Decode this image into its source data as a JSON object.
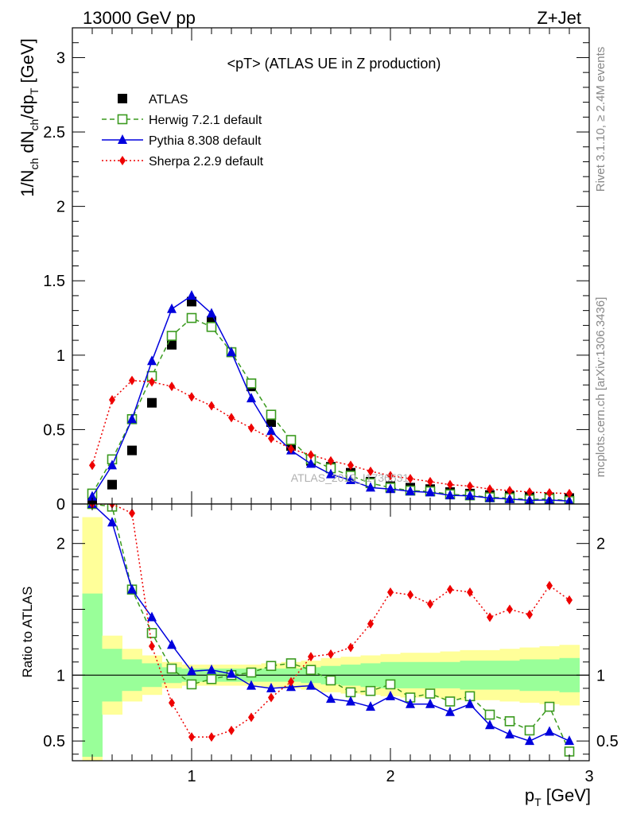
{
  "header": {
    "left": "13000 GeV pp",
    "right": "Z+Jet"
  },
  "side_labels": {
    "rivet": "Rivet 3.1.10, ≥ 2.4M events",
    "mcplots": "mcplots.cern.ch [arXiv:1306.3436]"
  },
  "watermark": "ATLAS_2019_I1736531",
  "chart_data": [
    {
      "type": "scatter",
      "panel": "main",
      "title": "<pT> (ATLAS UE in Z production)",
      "ylabel": "1/N_ch dN_ch/dp_T [GeV]",
      "ylim": [
        0,
        3.2
      ],
      "xlim": [
        0.4,
        3.0
      ],
      "yticks": [
        {
          "v": 0,
          "label": "0"
        },
        {
          "v": 0.5,
          "label": "0.5"
        },
        {
          "v": 1,
          "label": "1"
        },
        {
          "v": 1.5,
          "label": "1.5"
        },
        {
          "v": 2,
          "label": "2"
        },
        {
          "v": 2.5,
          "label": "2.5"
        },
        {
          "v": 3,
          "label": "3"
        }
      ],
      "x": [
        0.5,
        0.6,
        0.7,
        0.8,
        0.9,
        1.0,
        1.1,
        1.2,
        1.3,
        1.4,
        1.5,
        1.6,
        1.7,
        1.8,
        1.9,
        2.0,
        2.1,
        2.2,
        2.3,
        2.4,
        2.5,
        2.6,
        2.7,
        2.8,
        2.9
      ],
      "series": [
        {
          "name": "ATLAS",
          "style": "data",
          "color": "#000000",
          "values": [
            0.03,
            0.13,
            0.36,
            0.68,
            1.07,
            1.36,
            1.23,
            1.02,
            0.79,
            0.55,
            0.39,
            0.29,
            0.25,
            0.21,
            0.15,
            0.12,
            0.11,
            0.1,
            0.08,
            0.07,
            0.06,
            0.055,
            0.05,
            0.045,
            0.04
          ]
        },
        {
          "name": "Herwig 7.2.1 default",
          "style": "herwig",
          "color": "#3a9a1e",
          "values": [
            0.07,
            0.3,
            0.57,
            0.86,
            1.13,
            1.25,
            1.19,
            1.02,
            0.81,
            0.6,
            0.43,
            0.3,
            0.24,
            0.19,
            0.14,
            0.11,
            0.09,
            0.085,
            0.065,
            0.058,
            0.045,
            0.04,
            0.03,
            0.035,
            0.02
          ]
        },
        {
          "name": "Pythia 8.308 default",
          "style": "pythia",
          "color": "#0000dd",
          "values": [
            0.05,
            0.26,
            0.57,
            0.96,
            1.31,
            1.4,
            1.28,
            1.02,
            0.71,
            0.49,
            0.36,
            0.27,
            0.2,
            0.16,
            0.11,
            0.1,
            0.085,
            0.078,
            0.058,
            0.055,
            0.04,
            0.033,
            0.025,
            0.027,
            0.02
          ]
        },
        {
          "name": "Sherpa 2.2.9 default",
          "style": "sherpa",
          "color": "#ee0000",
          "values": [
            0.26,
            0.7,
            0.83,
            0.82,
            0.79,
            0.72,
            0.66,
            0.58,
            0.51,
            0.44,
            0.37,
            0.33,
            0.29,
            0.26,
            0.22,
            0.19,
            0.17,
            0.15,
            0.13,
            0.12,
            0.1,
            0.09,
            0.08,
            0.075,
            0.07
          ]
        }
      ],
      "legend_position": "top-left"
    },
    {
      "type": "scatter",
      "panel": "ratio",
      "ylabel": "Ratio to ATLAS",
      "xlabel": "p_T [GeV]",
      "ylim": [
        0.35,
        2.3
      ],
      "xlim": [
        0.4,
        3.0
      ],
      "reference_line": 1,
      "yticks": [
        {
          "v": 0.5,
          "label": "0.5"
        },
        {
          "v": 1,
          "label": "1"
        },
        {
          "v": 2,
          "label": "2"
        }
      ],
      "xticks": [
        {
          "v": 1,
          "label": "1"
        },
        {
          "v": 2,
          "label": "2"
        },
        {
          "v": 3,
          "label": "3"
        }
      ],
      "x": [
        0.5,
        0.6,
        0.7,
        0.8,
        0.9,
        1.0,
        1.1,
        1.2,
        1.3,
        1.4,
        1.5,
        1.6,
        1.7,
        1.8,
        1.9,
        2.0,
        2.1,
        2.2,
        2.3,
        2.4,
        2.5,
        2.6,
        2.7,
        2.8,
        2.9
      ],
      "uncertainty_bands": {
        "inner": [
          0.62,
          0.2,
          0.12,
          0.09,
          0.06,
          0.05,
          0.05,
          0.05,
          0.05,
          0.05,
          0.05,
          0.06,
          0.07,
          0.08,
          0.09,
          0.1,
          0.1,
          0.1,
          0.1,
          0.11,
          0.11,
          0.11,
          0.12,
          0.12,
          0.13
        ],
        "outer": [
          1.2,
          0.3,
          0.2,
          0.15,
          0.1,
          0.08,
          0.08,
          0.08,
          0.08,
          0.09,
          0.1,
          0.11,
          0.13,
          0.14,
          0.15,
          0.16,
          0.17,
          0.17,
          0.18,
          0.19,
          0.19,
          0.2,
          0.21,
          0.22,
          0.23
        ]
      },
      "series": [
        {
          "name": "Herwig 7.2.1 default",
          "style": "herwig",
          "color": "#3a9a1e",
          "values": [
            2.3,
            2.28,
            1.65,
            1.32,
            1.05,
            0.93,
            0.97,
            1.0,
            1.02,
            1.07,
            1.09,
            1.04,
            0.96,
            0.87,
            0.88,
            0.93,
            0.83,
            0.86,
            0.8,
            0.84,
            0.7,
            0.65,
            0.58,
            0.76,
            0.42
          ]
        },
        {
          "name": "Pythia 8.308 default",
          "style": "pythia",
          "color": "#0000dd",
          "values": [
            2.3,
            2.16,
            1.65,
            1.44,
            1.23,
            1.03,
            1.04,
            1.01,
            0.92,
            0.9,
            0.91,
            0.92,
            0.82,
            0.8,
            0.76,
            0.84,
            0.78,
            0.78,
            0.72,
            0.78,
            0.62,
            0.55,
            0.5,
            0.57,
            0.5
          ]
        },
        {
          "name": "Sherpa 2.2.9 default",
          "style": "sherpa",
          "color": "#ee0000",
          "values": [
            2.3,
            2.3,
            2.23,
            1.22,
            0.79,
            0.53,
            0.53,
            0.58,
            0.68,
            0.83,
            0.95,
            1.14,
            1.16,
            1.21,
            1.39,
            1.63,
            1.61,
            1.54,
            1.65,
            1.63,
            1.44,
            1.5,
            1.46,
            1.68,
            1.57
          ]
        }
      ]
    }
  ]
}
